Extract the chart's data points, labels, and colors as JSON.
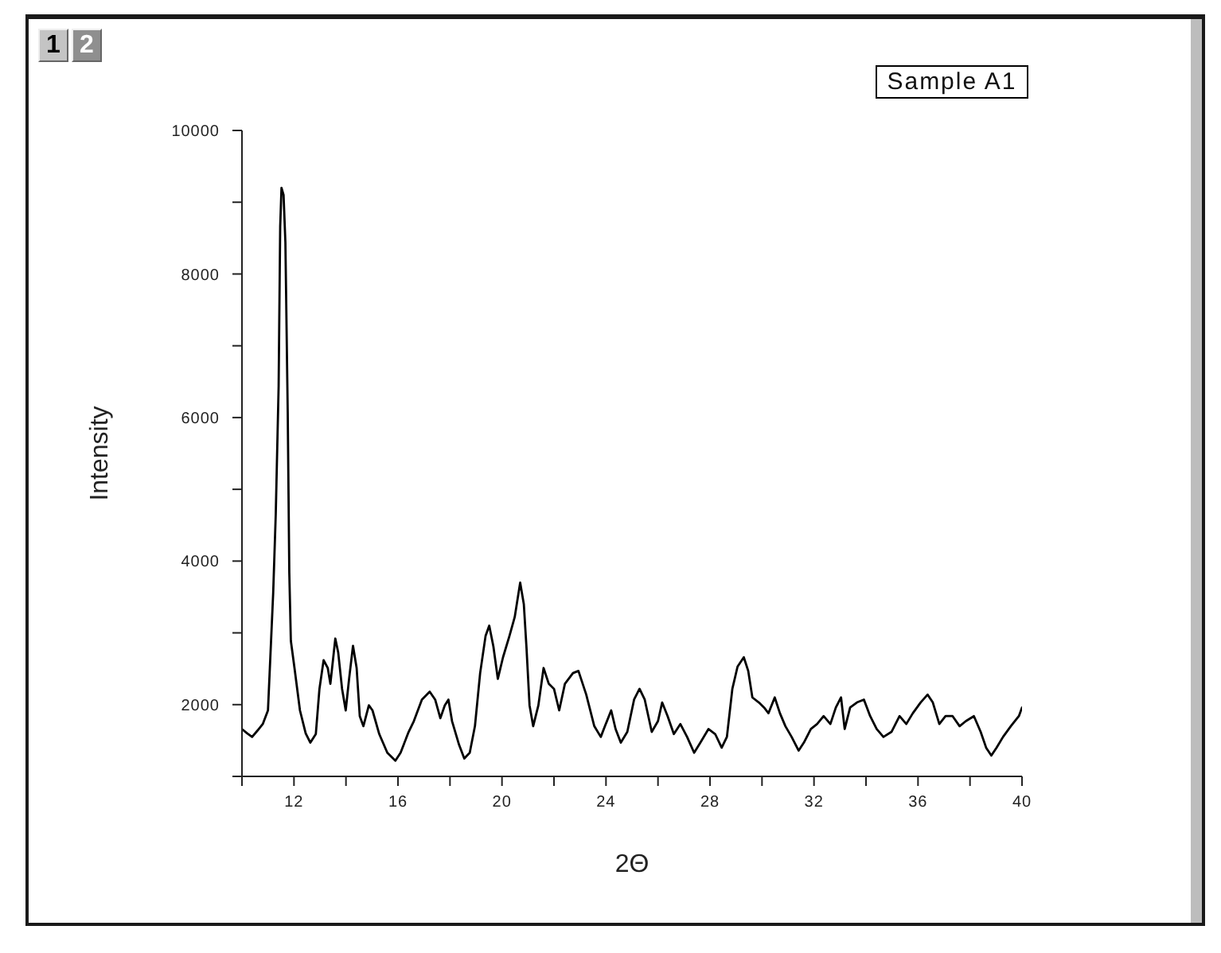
{
  "chart_data": {
    "type": "line",
    "title": "Sample A1",
    "xlabel": "2Θ",
    "ylabel": "Intensity",
    "annotations": [
      "1",
      "2"
    ],
    "x": [
      10.0,
      10.2,
      10.39,
      10.6,
      10.8,
      11.0,
      11.2,
      11.3,
      11.41,
      11.47,
      11.52,
      11.6,
      11.67,
      11.76,
      11.82,
      11.88,
      12.02,
      12.23,
      12.45,
      12.63,
      12.84,
      12.98,
      13.14,
      13.3,
      13.4,
      13.59,
      13.7,
      13.85,
      13.99,
      14.12,
      14.27,
      14.41,
      14.53,
      14.67,
      14.88,
      15.02,
      15.28,
      15.59,
      15.9,
      16.1,
      16.41,
      16.61,
      16.92,
      17.22,
      17.43,
      17.63,
      17.8,
      17.94,
      18.08,
      18.35,
      18.55,
      18.76,
      18.96,
      19.16,
      19.37,
      19.51,
      19.67,
      19.84,
      20.04,
      20.29,
      20.49,
      20.7,
      20.84,
      20.94,
      21.06,
      21.2,
      21.4,
      21.6,
      21.8,
      22.0,
      22.2,
      22.42,
      22.73,
      22.94,
      23.24,
      23.55,
      23.8,
      23.96,
      24.2,
      24.37,
      24.57,
      24.82,
      25.08,
      25.29,
      25.49,
      25.76,
      26.0,
      26.16,
      26.37,
      26.61,
      26.86,
      27.12,
      27.39,
      27.63,
      27.94,
      28.2,
      28.45,
      28.65,
      28.86,
      29.06,
      29.3,
      29.47,
      29.63,
      29.88,
      30.08,
      30.25,
      30.49,
      30.69,
      30.9,
      31.14,
      31.41,
      31.61,
      31.88,
      32.12,
      32.37,
      32.63,
      32.84,
      33.04,
      33.18,
      33.39,
      33.65,
      33.92,
      34.16,
      34.41,
      34.67,
      34.98,
      35.29,
      35.55,
      35.8,
      36.1,
      36.37,
      36.57,
      36.82,
      37.06,
      37.33,
      37.6,
      37.84,
      38.15,
      38.41,
      38.62,
      38.82,
      39.02,
      39.27,
      39.57,
      39.88,
      40.0
    ],
    "series": [
      {
        "color": "#000000",
        "values": [
          1660,
          1600,
          1550,
          1640,
          1730,
          1920,
          3550,
          4660,
          6440,
          8660,
          9200,
          9100,
          8440,
          6070,
          3840,
          2890,
          2510,
          1920,
          1600,
          1470,
          1590,
          2220,
          2620,
          2510,
          2290,
          2920,
          2730,
          2220,
          1920,
          2360,
          2820,
          2510,
          1840,
          1700,
          1990,
          1920,
          1590,
          1330,
          1220,
          1330,
          1620,
          1770,
          2070,
          2180,
          2070,
          1810,
          1990,
          2070,
          1770,
          1440,
          1250,
          1330,
          1700,
          2440,
          2960,
          3100,
          2810,
          2360,
          2660,
          2960,
          3220,
          3700,
          3400,
          2810,
          1990,
          1700,
          1990,
          2510,
          2290,
          2220,
          1920,
          2290,
          2440,
          2470,
          2140,
          1700,
          1550,
          1700,
          1920,
          1660,
          1470,
          1620,
          2070,
          2220,
          2070,
          1620,
          1770,
          2030,
          1840,
          1590,
          1730,
          1550,
          1330,
          1470,
          1660,
          1590,
          1400,
          1550,
          2220,
          2530,
          2660,
          2470,
          2100,
          2030,
          1960,
          1880,
          2100,
          1880,
          1700,
          1550,
          1360,
          1470,
          1660,
          1730,
          1840,
          1730,
          1960,
          2100,
          1660,
          1960,
          2030,
          2070,
          1840,
          1660,
          1550,
          1620,
          1840,
          1730,
          1880,
          2030,
          2140,
          2030,
          1730,
          1840,
          1840,
          1700,
          1770,
          1840,
          1620,
          1400,
          1290,
          1400,
          1550,
          1700,
          1840,
          1960
        ]
      }
    ],
    "xlim": [
      10,
      40
    ],
    "xticks": [
      {
        "value": 10,
        "label": null
      },
      12,
      {
        "value": 14,
        "label": null
      },
      16,
      {
        "value": 18,
        "label": null
      },
      20,
      {
        "value": 22,
        "label": null
      },
      24,
      {
        "value": 26,
        "label": null
      },
      28,
      {
        "value": 30,
        "label": null
      },
      32,
      {
        "value": 34,
        "label": null
      },
      36,
      {
        "value": 38,
        "label": null
      },
      40
    ],
    "ylim": [
      1000,
      10000
    ],
    "yticks": [
      {
        "value": 1000,
        "label": null
      },
      2000,
      {
        "value": 3000,
        "label": null
      },
      4000,
      {
        "value": 5000,
        "label": null
      },
      6000,
      {
        "value": 7000,
        "label": null
      },
      8000,
      {
        "value": 9000,
        "label": null
      },
      10000
    ]
  }
}
